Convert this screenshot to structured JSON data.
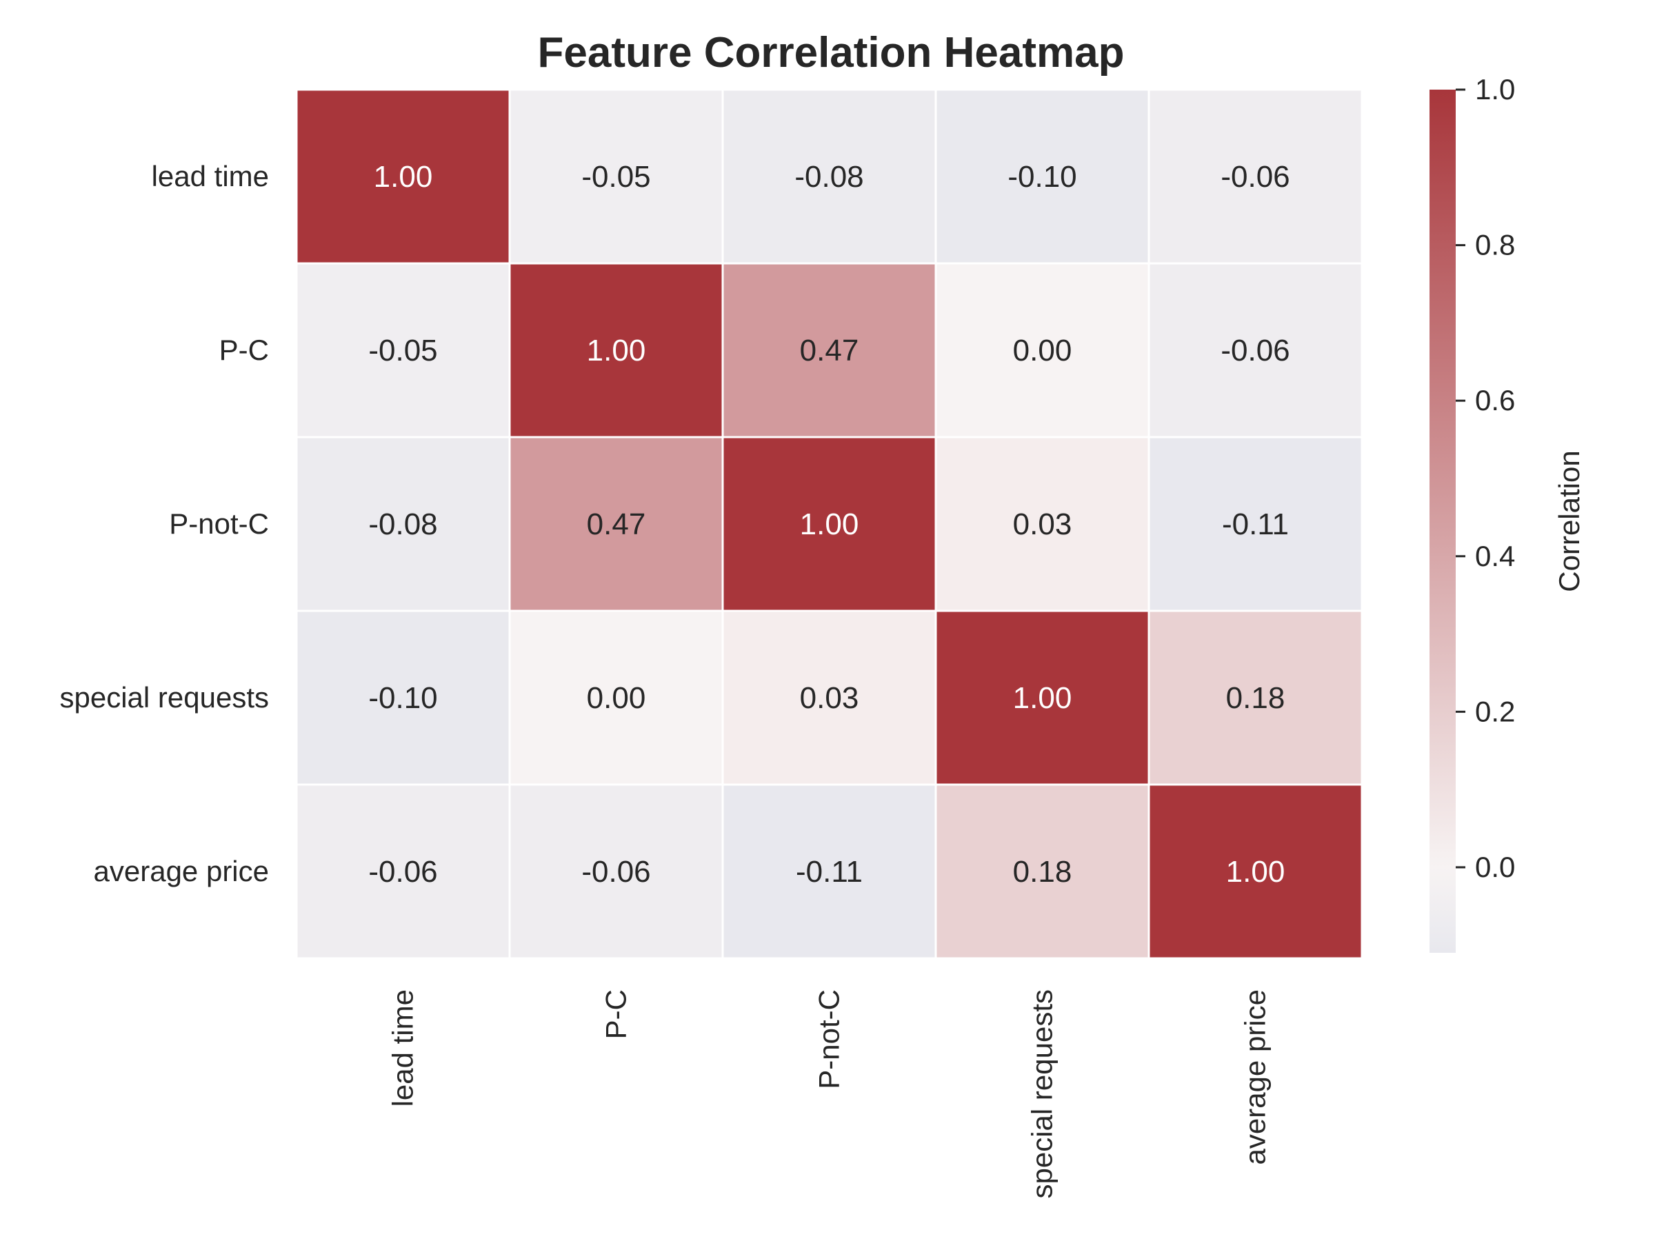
{
  "chart_data": {
    "type": "heatmap",
    "title": "Feature Correlation Heatmap",
    "row_labels": [
      "lead time",
      "P-C",
      "P-not-C",
      "special requests",
      "average price"
    ],
    "col_labels": [
      "lead time",
      "P-C",
      "P-not-C",
      "special requests",
      "average price"
    ],
    "values": [
      [
        1.0,
        -0.05,
        -0.08,
        -0.1,
        -0.06
      ],
      [
        -0.05,
        1.0,
        0.47,
        -0.0,
        -0.06
      ],
      [
        -0.08,
        0.47,
        1.0,
        0.03,
        -0.11
      ],
      [
        -0.1,
        -0.0,
        0.03,
        1.0,
        0.18
      ],
      [
        -0.06,
        -0.06,
        -0.11,
        0.18,
        1.0
      ]
    ],
    "value_format_decimals": 2,
    "colorbar": {
      "label": "Correlation",
      "min": -0.11,
      "max": 1.0,
      "ticks": [
        0.0,
        0.2,
        0.4,
        0.6,
        0.8,
        1.0
      ],
      "tick_labels": [
        "0.0",
        "0.2",
        "0.4",
        "0.6",
        "0.8",
        "1.0"
      ]
    },
    "colors": {
      "neg_end": "#e8e8ee",
      "zero": "#f7f3f3",
      "pos_end": "#a8363b",
      "cell_border": "#ffffff",
      "text_dark": "#262626",
      "text_light": "#ffffff"
    }
  }
}
